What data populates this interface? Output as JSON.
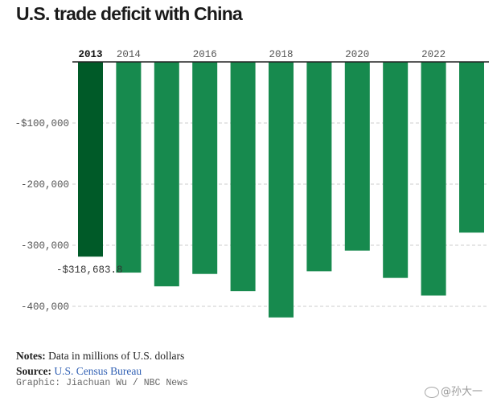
{
  "page": {
    "title": "U.S. trade deficit with China",
    "notes_label": "Notes:",
    "notes_text": " Data in millions of U.S. dollars",
    "source_label": "Source:",
    "source_text": "U.S. Census Bureau",
    "credit": "Graphic: Jiachuan Wu / NBC News",
    "watermark": "@孙大一"
  },
  "colors": {
    "bar": "#178a4e",
    "highlight_bar": "#005a28",
    "grid": "#cccccc",
    "axis_text": "#555555"
  },
  "chart_data": {
    "type": "bar",
    "title": "U.S. trade deficit with China",
    "categories": [
      "2013",
      "2014",
      "2015",
      "2016",
      "2017",
      "2018",
      "2019",
      "2020",
      "2021",
      "2022",
      "2023"
    ],
    "values": [
      -318683.8,
      -344800,
      -367300,
      -347000,
      -375200,
      -418200,
      -342600,
      -308800,
      -353500,
      -382300,
      -279400
    ],
    "x_tick_labels": [
      "2013",
      "2014",
      "2016",
      "2018",
      "2020",
      "2022"
    ],
    "y_ticks": [
      0,
      -100000,
      -200000,
      -300000,
      -400000
    ],
    "y_tick_labels": [
      "",
      "-$100,000",
      "-200,000",
      "-300,000",
      "-400,000"
    ],
    "ylim": [
      -420000,
      0
    ],
    "highlight": {
      "category": "2013",
      "label": "-$318,683.8"
    },
    "grid": true
  }
}
